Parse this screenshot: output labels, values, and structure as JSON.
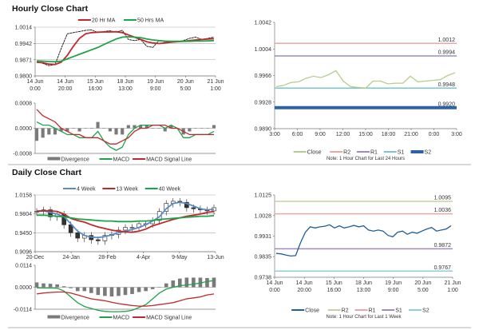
{
  "sections": {
    "hourly_title": "Hourly Close Chart",
    "daily_title": "Daily Close Chart"
  },
  "colors": {
    "red": "#c0282d",
    "green": "#1fa34a",
    "blue": "#5b8cc8",
    "black": "#111111",
    "divergence": "#7a7a7a",
    "pale_green": "#b5cf8a",
    "pink": "#e8a9a5",
    "purple": "#9f8bbd",
    "teal": "#78c7cf",
    "dark_blue": "#2c63a8",
    "olive": "#c5d49a",
    "cyan": "#8fcfd6",
    "navy": "#1f5f9a"
  },
  "chart_data": [
    {
      "id": "hourly_main",
      "type": "line",
      "x_labels": [
        [
          "14 Jun",
          "0:00"
        ],
        [
          "14 Jun",
          "20:00"
        ],
        [
          "15 Jun",
          "16:00"
        ],
        [
          "18 Jun",
          "13:00"
        ],
        [
          "19 Jun",
          "9:00"
        ],
        [
          "20 Jun",
          "5:00"
        ],
        [
          "21 Jun",
          "1:00"
        ]
      ],
      "y_ticks": [
        "0.9800",
        "0.9871",
        "0.9942",
        "1.0014"
      ],
      "ylim": [
        0.98,
        1.0014
      ],
      "grid": true,
      "legend": "top",
      "series": [
        {
          "name": "",
          "color": "black",
          "style": "price",
          "values": [
            0.9862,
            0.9855,
            0.9845,
            0.985,
            0.992,
            0.9985,
            0.999,
            0.9995,
            1.0,
            1.0002,
            0.999,
            0.9995,
            0.9998,
            0.9992,
            1.0,
            0.996,
            0.9955,
            0.996,
            0.993,
            0.9925,
            0.9955,
            0.995,
            0.9948,
            0.995,
            0.9955,
            0.9965,
            0.997,
            0.996,
            0.9965,
            0.997
          ]
        },
        {
          "name": "20 Hr MA",
          "color": "red",
          "values": [
            0.986,
            0.9858,
            0.9852,
            0.985,
            0.986,
            0.989,
            0.993,
            0.9965,
            0.9985,
            0.999,
            0.9992,
            0.9993,
            0.9993,
            0.9994,
            0.999,
            0.998,
            0.997,
            0.996,
            0.995,
            0.9945,
            0.9942,
            0.9945,
            0.9948,
            0.995,
            0.9952,
            0.9955,
            0.9958,
            0.996,
            0.9962,
            0.9963
          ]
        },
        {
          "name": "50 Hrs MA",
          "color": "green",
          "values": [
            0.9866,
            0.9865,
            0.9863,
            0.9862,
            0.9865,
            0.9875,
            0.9885,
            0.9895,
            0.9905,
            0.9915,
            0.9925,
            0.9938,
            0.995,
            0.9962,
            0.997,
            0.9972,
            0.997,
            0.9968,
            0.9962,
            0.9958,
            0.9955,
            0.9953,
            0.9952,
            0.9952,
            0.9952,
            0.9952,
            0.9953,
            0.9953,
            0.9954,
            0.9955
          ]
        }
      ]
    },
    {
      "id": "hourly_macd",
      "type": "line",
      "y_ticks": [
        "-0.0008",
        "0.0000",
        "0.0008"
      ],
      "ylim": [
        -0.0008,
        0.0008
      ],
      "legend": "bottom",
      "series": [
        {
          "name": "Divergence",
          "color": "divergence",
          "style": "bars",
          "values": [
            -0.0004,
            -0.0003,
            -0.0002,
            -0.0002,
            -0.0001,
            -0.0001,
            0.0,
            -0.0001,
            0.0,
            0.0,
            0.0002,
            0.0,
            -0.0001,
            -0.0002,
            -0.0002,
            0.0001,
            0.0001,
            0.0001,
            0.0001,
            0.0,
            0.0,
            -0.0001,
            0.0001,
            0.0,
            -0.0002,
            -0.0001,
            0.0,
            0.0,
            0.0,
            0.0001
          ]
        },
        {
          "name": "MACD",
          "color": "green",
          "values": [
            0.0002,
            0.0001,
            0.0001,
            0.0,
            -0.0001,
            -0.0002,
            -0.0002,
            -0.0003,
            -0.0003,
            -0.0003,
            -0.0001,
            -0.0004,
            -0.0006,
            -0.0007,
            -0.0006,
            -0.0002,
            0.0,
            0.0001,
            0.0001,
            0.0001,
            0.0001,
            0.0,
            0.0001,
            0.0,
            -0.0003,
            -0.0003,
            -0.0002,
            -0.0002,
            -0.0002,
            -0.0001
          ]
        },
        {
          "name": "MACD Signal Line",
          "color": "red",
          "values": [
            0.0006,
            0.0004,
            0.0003,
            0.0002,
            0.0,
            -0.0001,
            -0.0002,
            -0.0002,
            -0.0003,
            -0.0003,
            -0.0003,
            -0.0004,
            -0.0005,
            -0.0005,
            -0.0004,
            -0.0003,
            -0.0001,
            0.0,
            0.0,
            0.0001,
            0.0001,
            0.0001,
            0.0,
            0.0,
            -0.0001,
            -0.0002,
            -0.0002,
            -0.0002,
            -0.0002,
            -0.0002
          ]
        }
      ]
    },
    {
      "id": "intraday",
      "type": "line",
      "x_labels": [
        [
          "3:00"
        ],
        [
          "6:00"
        ],
        [
          "9:00"
        ],
        [
          "12:00"
        ],
        [
          "15:00"
        ],
        [
          "18:00"
        ],
        [
          "21:00"
        ],
        [
          "0:00"
        ],
        [
          "3:00"
        ]
      ],
      "y_ticks": [
        "0.9890",
        "0.9928",
        "0.9966",
        "1.0004",
        "1.0042"
      ],
      "ylim": [
        0.989,
        1.0042
      ],
      "legend": "bottom",
      "note": "Note: 1 Hour Chart for Last 24 Hours",
      "levels": [
        {
          "name": "R2",
          "value": 1.0012,
          "label": "1.0012",
          "color": "pink"
        },
        {
          "name": "R1",
          "value": 0.9994,
          "label": "0.9994",
          "color": "purple"
        },
        {
          "name": "S1",
          "value": 0.9948,
          "label": "0.9948",
          "color": "teal"
        },
        {
          "name": "S2",
          "value": 0.992,
          "label": "0.9920",
          "color": "dark_blue"
        }
      ],
      "series": [
        {
          "name": "Close",
          "color": "pale_green",
          "values": [
            0.995,
            0.9952,
            0.9956,
            0.9957,
            0.9962,
            0.9965,
            0.9963,
            0.9967,
            0.9973,
            0.9958,
            0.995,
            0.9949,
            0.9948,
            0.9958,
            0.9958,
            0.9954,
            0.9955,
            0.9955,
            0.9965,
            0.9957,
            0.9958,
            0.9959,
            0.996,
            0.9966,
            0.997
          ]
        }
      ]
    },
    {
      "id": "daily_main",
      "type": "line",
      "x_labels": [
        [
          "20-Dec"
        ],
        [
          "24-Jan"
        ],
        [
          "28-Feb"
        ],
        [
          "4-Apr"
        ],
        [
          "9-May"
        ],
        [
          "13-Jun"
        ]
      ],
      "y_ticks": [
        "0.9096",
        "0.9450",
        "0.9804",
        "1.0158"
      ],
      "ylim": [
        0.9096,
        1.0158
      ],
      "grid": true,
      "legend": "top",
      "series": [
        {
          "name": "",
          "color": "black",
          "style": "candles",
          "values": [
            0.985,
            0.988,
            0.975,
            0.98,
            0.96,
            0.945,
            0.935,
            0.94,
            0.932,
            0.93,
            0.94,
            0.942,
            0.95,
            0.955,
            0.955,
            0.962,
            0.962,
            0.968,
            0.985,
            1.0,
            1.004,
            1.002,
            0.992,
            0.99,
            0.988,
            0.986,
            0.992
          ]
        },
        {
          "name": "4 Week",
          "color": "blue",
          "values": [
            0.986,
            0.986,
            0.983,
            0.98,
            0.975,
            0.962,
            0.948,
            0.94,
            0.937,
            0.936,
            0.938,
            0.941,
            0.945,
            0.948,
            0.951,
            0.955,
            0.96,
            0.967,
            0.975,
            0.99,
            1.0,
            1.002,
            1.0,
            0.995,
            0.99,
            0.988,
            0.989
          ]
        },
        {
          "name": "13 Week",
          "color": "red",
          "values": [
            0.985,
            0.986,
            0.986,
            0.985,
            0.98,
            0.972,
            0.968,
            0.965,
            0.96,
            0.956,
            0.953,
            0.95,
            0.948,
            0.947,
            0.946,
            0.948,
            0.952,
            0.958,
            0.962,
            0.966,
            0.97,
            0.973,
            0.976,
            0.978,
            0.98,
            0.983,
            0.985
          ]
        },
        {
          "name": "40 Week",
          "color": "green",
          "values": [
            0.978,
            0.978,
            0.977,
            0.976,
            0.975,
            0.973,
            0.971,
            0.97,
            0.969,
            0.968,
            0.967,
            0.967,
            0.966,
            0.966,
            0.966,
            0.967,
            0.967,
            0.968,
            0.97,
            0.971,
            0.972,
            0.973,
            0.974,
            0.975,
            0.976,
            0.976,
            0.977
          ]
        }
      ]
    },
    {
      "id": "daily_macd",
      "type": "line",
      "y_ticks": [
        "-0.0114",
        "0.0000",
        "0.0114"
      ],
      "ylim": [
        -0.0114,
        0.0114
      ],
      "legend": "bottom",
      "series": [
        {
          "name": "Divergence",
          "color": "divergence",
          "style": "bars",
          "values": [
            0.0025,
            0.002,
            0.0018,
            0.0015,
            0.0005,
            -0.0005,
            -0.002,
            -0.002,
            -0.003,
            -0.004,
            -0.0045,
            -0.0048,
            -0.0045,
            -0.004,
            -0.0035,
            -0.0025,
            -0.002,
            -0.001,
            0.0,
            0.002,
            0.0035,
            0.0045,
            0.005,
            0.005,
            0.005,
            0.0048,
            0.005
          ]
        },
        {
          "name": "MACD",
          "color": "green",
          "values": [
            -0.0003,
            -0.0004,
            -0.0004,
            -0.0005,
            -0.002,
            -0.005,
            -0.008,
            -0.01,
            -0.011,
            -0.012,
            -0.0125,
            -0.0127,
            -0.0127,
            -0.0125,
            -0.012,
            -0.0105,
            -0.009,
            -0.006,
            -0.003,
            -0.001,
            0.0,
            0.0008,
            0.0012,
            0.0016,
            0.0022,
            0.003,
            0.0035
          ]
        },
        {
          "name": "MACD Signal Line",
          "color": "red",
          "values": [
            -0.0035,
            -0.003,
            -0.0027,
            -0.0025,
            -0.0025,
            -0.003,
            -0.004,
            -0.005,
            -0.006,
            -0.0065,
            -0.007,
            -0.0078,
            -0.0085,
            -0.009,
            -0.0095,
            -0.0098,
            -0.0098,
            -0.0095,
            -0.009,
            -0.0085,
            -0.008,
            -0.007,
            -0.006,
            -0.0055,
            -0.005,
            -0.004,
            -0.0035
          ]
        }
      ]
    },
    {
      "id": "weekly",
      "type": "line",
      "x_labels": [
        [
          "14 Jun",
          "0:00"
        ],
        [
          "14 Jun",
          "20:00"
        ],
        [
          "15 Jun",
          "16:00"
        ],
        [
          "18 Jun",
          "13:00"
        ],
        [
          "19 Jun",
          "9:00"
        ],
        [
          "20 Jun",
          "5:00"
        ],
        [
          "21 Jun",
          "1:00"
        ]
      ],
      "y_ticks": [
        "0.9738",
        "0.9835",
        "0.9931",
        "1.0028",
        "1.0125"
      ],
      "ylim": [
        0.9738,
        1.0125
      ],
      "legend": "bottom",
      "note": "Note: 1 Hour Chart for Last 1 Week",
      "levels": [
        {
          "name": "R2",
          "value": 1.0095,
          "label": "1.0095",
          "color": "olive"
        },
        {
          "name": "R1",
          "value": 1.0036,
          "label": "1.0036",
          "color": "pink"
        },
        {
          "name": "S1",
          "value": 0.9872,
          "label": "0.9872",
          "color": "purple"
        },
        {
          "name": "S2",
          "value": 0.9767,
          "label": "0.9767",
          "color": "cyan"
        }
      ],
      "series": [
        {
          "name": "Close",
          "color": "navy",
          "values": [
            0.985,
            0.9848,
            0.9842,
            0.9838,
            0.984,
            0.99,
            0.995,
            0.9975,
            0.997,
            0.9975,
            0.9978,
            0.9985,
            0.997,
            0.998,
            0.997,
            0.9975,
            0.9982,
            0.9975,
            0.998,
            0.996,
            0.9955,
            0.996,
            0.9955,
            0.9935,
            0.9928,
            0.995,
            0.9955,
            0.994,
            0.995,
            0.9945,
            0.9955,
            0.9965,
            0.9972,
            0.9955,
            0.996,
            0.9965,
            0.998
          ]
        }
      ]
    }
  ]
}
